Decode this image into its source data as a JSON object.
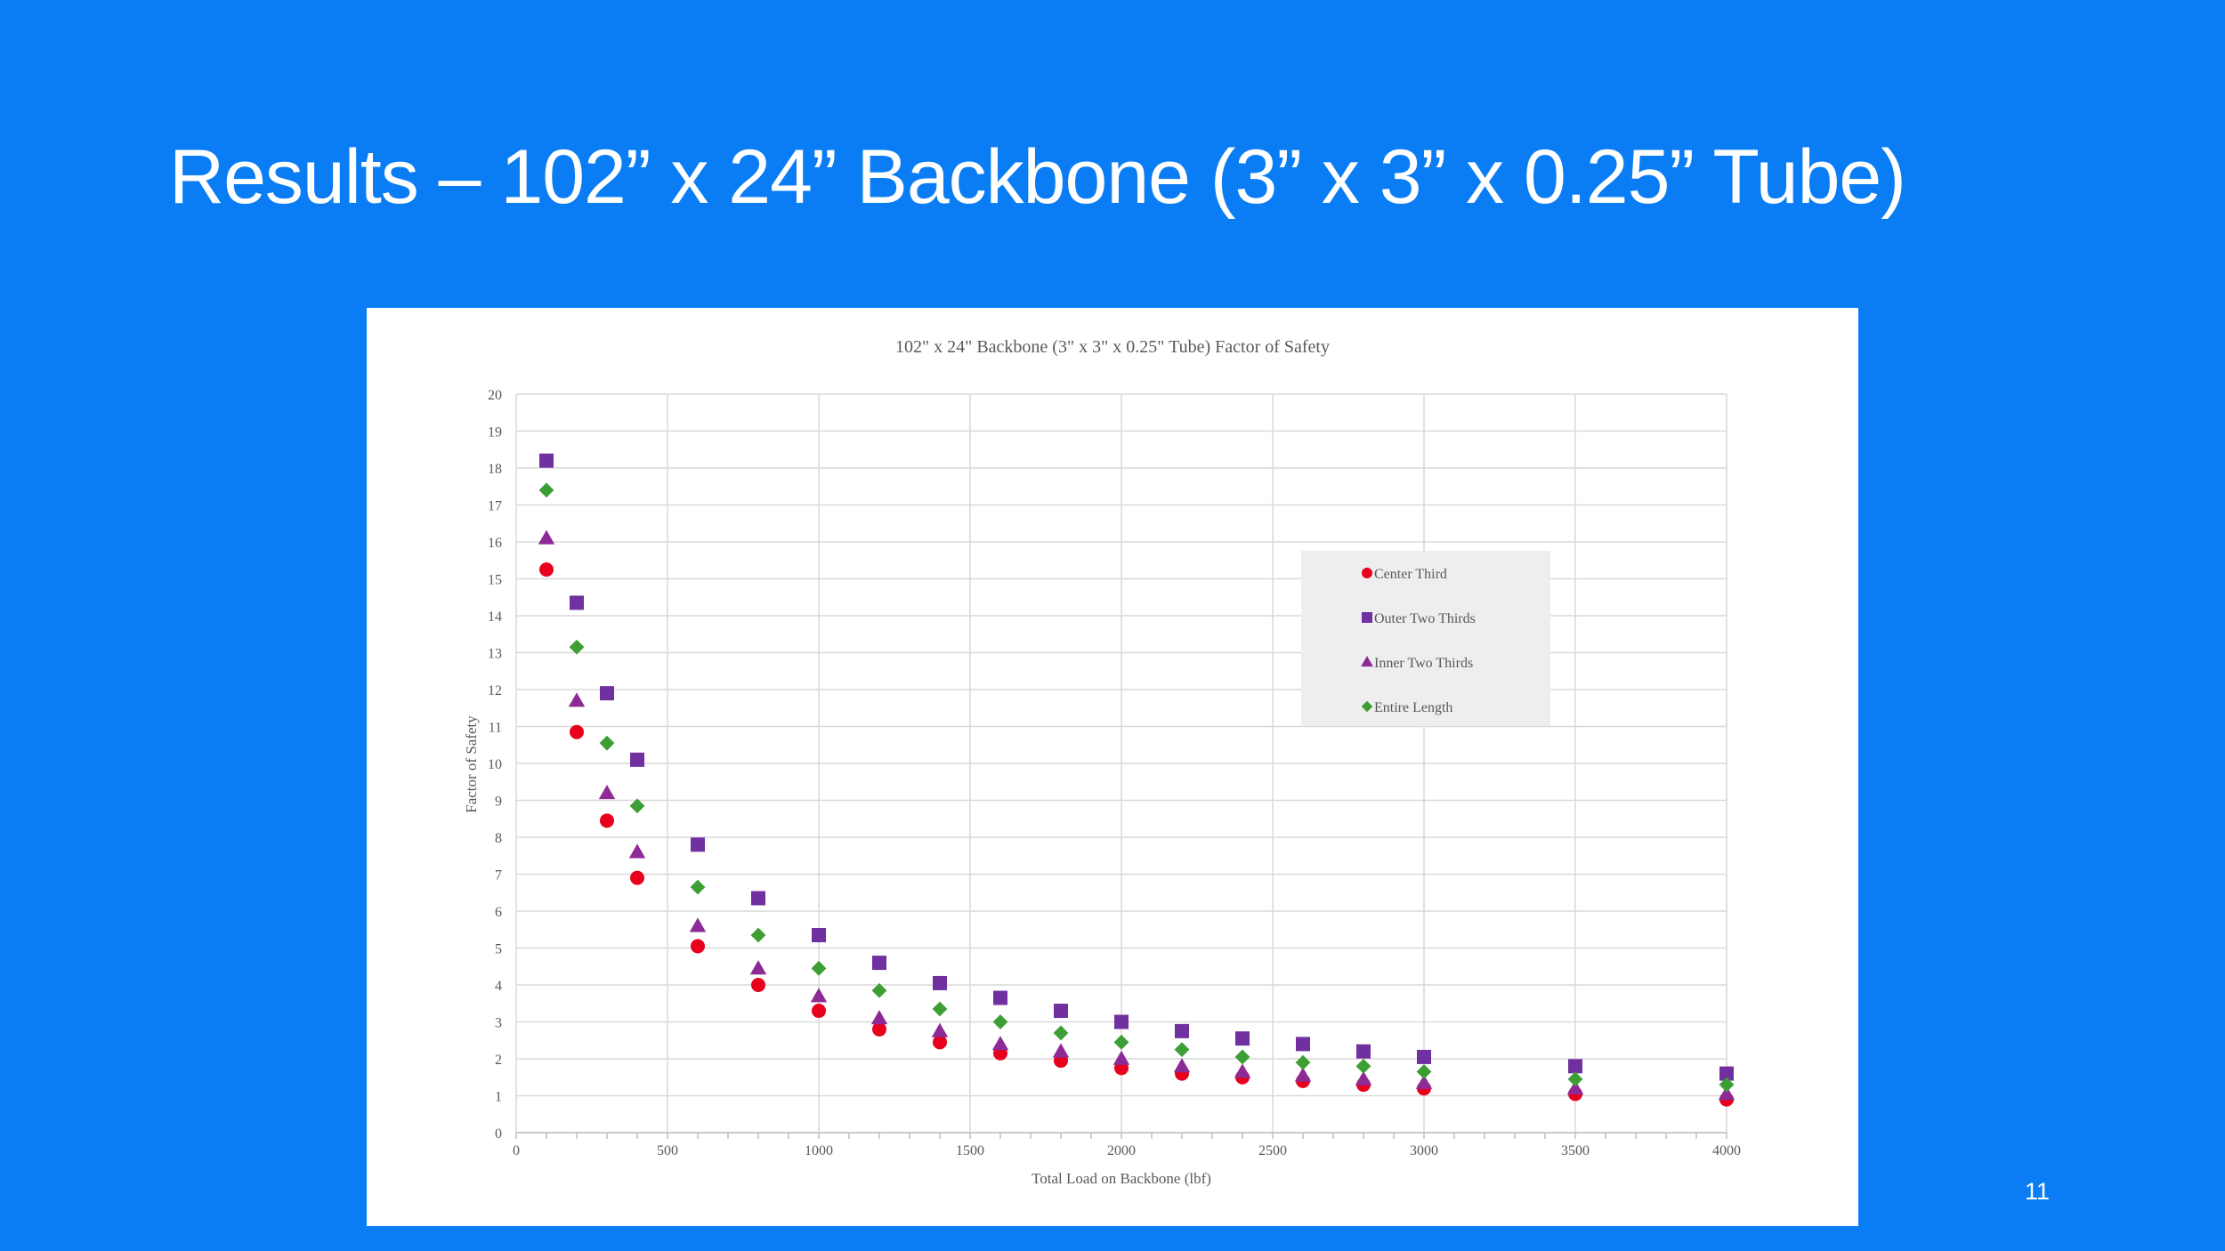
{
  "slide": {
    "title": "Results – 102” x 24” Backbone (3” x 3” x 0.25” Tube)",
    "page_number": "11"
  },
  "colors": {
    "background": "#0a7df5",
    "center_third": "#e8001c",
    "outer_two_thirds": "#7030a0",
    "inner_two_thirds": "#8e2a96",
    "entire_length": "#3d9e34",
    "legend_bg": "#eeeeee",
    "grid": "#d9d9d9"
  },
  "chart_data": {
    "type": "scatter",
    "title": "102\" x 24\" Backbone (3\" x 3\" x 0.25\" Tube) Factor of Safety",
    "xlabel": "Total Load on Backbone (lbf)",
    "ylabel": "Factor of Safety",
    "xlim": [
      0,
      4000
    ],
    "ylim": [
      0,
      20
    ],
    "x_ticks": [
      "0",
      "500",
      "1000",
      "1500",
      "2000",
      "2500",
      "3000",
      "3500",
      "4000"
    ],
    "y_ticks": [
      "0",
      "1",
      "2",
      "3",
      "4",
      "5",
      "6",
      "7",
      "8",
      "9",
      "10",
      "11",
      "12",
      "13",
      "14",
      "15",
      "16",
      "17",
      "18",
      "19",
      "20"
    ],
    "grid": true,
    "legend_position": "right",
    "x": [
      100,
      200,
      300,
      400,
      600,
      800,
      1000,
      1200,
      1400,
      1600,
      1800,
      2000,
      2200,
      2400,
      2600,
      2800,
      3000,
      3500,
      4000
    ],
    "series": [
      {
        "name": "Center Third",
        "marker": "circle",
        "values": [
          15.25,
          10.85,
          8.45,
          6.9,
          5.05,
          4.0,
          3.3,
          2.8,
          2.45,
          2.15,
          1.95,
          1.75,
          1.6,
          1.5,
          1.4,
          1.3,
          1.2,
          1.05,
          0.9
        ]
      },
      {
        "name": "Outer Two Thirds",
        "marker": "square",
        "values": [
          18.2,
          14.35,
          11.9,
          10.1,
          7.8,
          6.35,
          5.35,
          4.6,
          4.05,
          3.65,
          3.3,
          3.0,
          2.75,
          2.55,
          2.4,
          2.2,
          2.05,
          1.8,
          1.6
        ]
      },
      {
        "name": "Inner Two Thirds",
        "marker": "triangle",
        "values": [
          16.1,
          11.7,
          9.2,
          7.6,
          5.6,
          4.45,
          3.7,
          3.1,
          2.75,
          2.4,
          2.2,
          2.0,
          1.8,
          1.65,
          1.55,
          1.45,
          1.35,
          1.2,
          1.05
        ]
      },
      {
        "name": "Entire Length",
        "marker": "diamond",
        "values": [
          17.4,
          13.15,
          10.55,
          8.85,
          6.65,
          5.35,
          4.45,
          3.85,
          3.35,
          3.0,
          2.7,
          2.45,
          2.25,
          2.05,
          1.9,
          1.8,
          1.65,
          1.45,
          1.3
        ]
      }
    ]
  }
}
